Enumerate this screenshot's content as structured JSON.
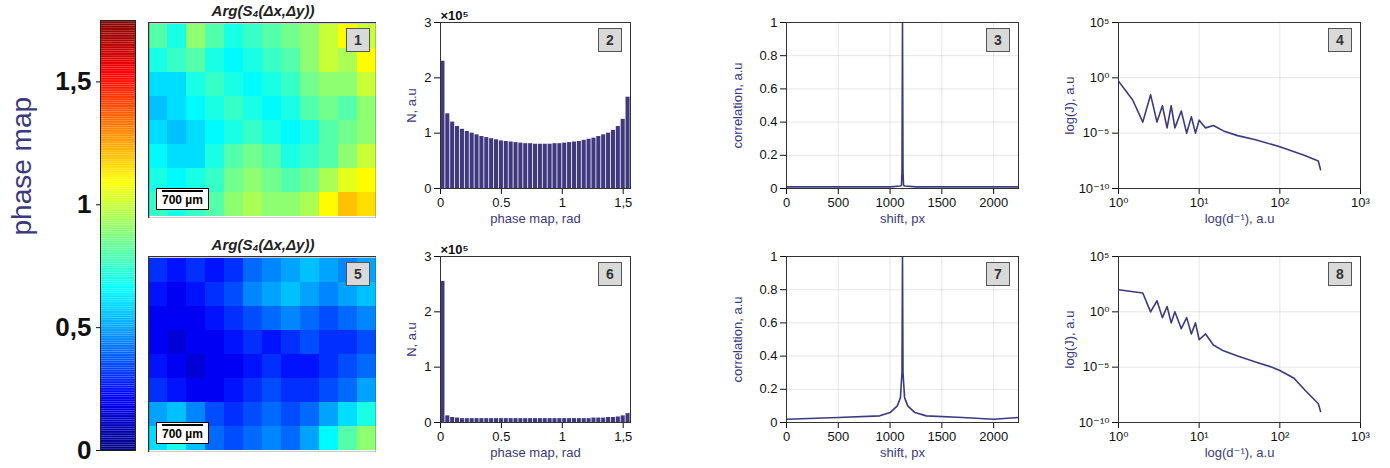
{
  "chart_data": [
    {
      "type": "colorbar",
      "label": "phase map",
      "color": "jet",
      "zlim": [
        0,
        1.75
      ],
      "zticks": [
        0,
        {
          "value": 0.5,
          "label": "0,5"
        },
        1,
        {
          "value": 1.5,
          "label": "1,5"
        }
      ]
    },
    {
      "type": "heatmap",
      "panel": "1",
      "title": "Arg(S₄(Δx,Δy))",
      "scale_bar": "700 µm",
      "color": "jet",
      "cells": [
        [
          0.8,
          0.7,
          0.9,
          0.8,
          0.7,
          0.75,
          0.8,
          0.85,
          0.9,
          1.0,
          1.1,
          1.0
        ],
        [
          0.7,
          0.75,
          0.8,
          0.7,
          0.65,
          0.7,
          0.75,
          0.8,
          0.9,
          1.0,
          0.95,
          1.1
        ],
        [
          0.6,
          0.6,
          0.7,
          0.75,
          0.7,
          0.65,
          0.7,
          0.75,
          0.85,
          0.9,
          0.9,
          1.0
        ],
        [
          0.55,
          0.6,
          0.65,
          0.7,
          0.75,
          0.7,
          0.65,
          0.7,
          0.8,
          0.85,
          0.8,
          0.9
        ],
        [
          0.6,
          0.55,
          0.6,
          0.65,
          0.7,
          0.75,
          0.7,
          0.65,
          0.7,
          0.8,
          0.85,
          0.9
        ],
        [
          0.65,
          0.6,
          0.6,
          0.7,
          0.8,
          0.85,
          0.8,
          0.7,
          0.75,
          0.8,
          0.9,
          1.0
        ],
        [
          0.7,
          0.65,
          0.7,
          0.75,
          0.85,
          0.9,
          0.85,
          0.8,
          0.85,
          0.95,
          1.05,
          1.1
        ],
        [
          0.75,
          0.7,
          0.75,
          0.8,
          0.9,
          0.95,
          0.9,
          0.9,
          0.95,
          1.1,
          1.2,
          1.15
        ]
      ]
    },
    {
      "type": "histogram",
      "panel": "2",
      "x_label": "phase map, rad",
      "y_label": "N, a.u",
      "y_axis_scale_label": "×10⁵",
      "color": "#40397f",
      "grid": false,
      "bins": [
        0,
        0.04,
        0.08,
        0.12,
        0.16,
        0.2,
        0.24,
        0.28,
        0.32,
        0.36,
        0.4,
        0.44,
        0.48,
        0.52,
        0.56,
        0.6,
        0.64,
        0.68,
        0.72,
        0.76,
        0.8,
        0.84,
        0.88,
        0.92,
        0.96,
        1,
        1.04,
        1.08,
        1.12,
        1.16,
        1.2,
        1.24,
        1.28,
        1.32,
        1.36,
        1.4,
        1.44,
        1.48,
        1.52,
        1.56
      ],
      "values": [
        2.3,
        1.35,
        1.2,
        1.12,
        1.07,
        1.03,
        1.0,
        0.97,
        0.94,
        0.92,
        0.9,
        0.88,
        0.86,
        0.85,
        0.84,
        0.83,
        0.82,
        0.81,
        0.81,
        0.8,
        0.8,
        0.8,
        0.8,
        0.81,
        0.81,
        0.82,
        0.83,
        0.84,
        0.85,
        0.87,
        0.89,
        0.91,
        0.94,
        0.97,
        1.0,
        1.05,
        1.12,
        1.25,
        1.65
      ],
      "xlim": [
        0,
        1.56
      ],
      "xticks": [
        0,
        0.5,
        1,
        {
          "value": 1.5,
          "label": "1,5"
        }
      ],
      "ylim": [
        0,
        3
      ],
      "yticks": [
        0,
        1,
        2,
        3
      ]
    },
    {
      "type": "line",
      "panel": "3",
      "x_label": "shift, px",
      "y_label": "correlation, a.u",
      "color": "#3c3a82",
      "grid": true,
      "x": [
        0,
        500,
        1000,
        1100,
        1110,
        1115,
        1120,
        1125,
        1130,
        1140,
        1250,
        1500,
        2000,
        2240
      ],
      "values": [
        0.01,
        0.01,
        0.01,
        0.015,
        0.02,
        0.1,
        1,
        0.1,
        0.02,
        0.015,
        0.01,
        0.01,
        0.01,
        0.01
      ],
      "xlim": [
        0,
        2240
      ],
      "xticks": [
        0,
        500,
        1000,
        1500,
        2000
      ],
      "ylim": [
        0,
        1
      ],
      "yticks": [
        0,
        0.2,
        0.4,
        0.6,
        0.8,
        1
      ]
    },
    {
      "type": "line",
      "panel": "4",
      "x_label": "log(d⁻¹), a.u",
      "y_label": "log(J), a.u",
      "color": "#3c3a82",
      "grid": true,
      "log": true,
      "x": [
        1,
        1.5,
        2,
        2.5,
        3,
        3.5,
        4,
        4.5,
        5,
        6,
        7,
        8,
        9,
        10,
        12,
        15,
        20,
        30,
        50,
        100,
        200,
        300,
        320
      ],
      "values": [
        0.5,
        0.01,
        0.0001,
        0.03,
        0.0001,
        0.003,
        3e-05,
        0.003,
        3e-05,
        0.001,
        1e-05,
        0.0003,
        1e-05,
        0.00015,
        3e-05,
        5e-05,
        1.6e-05,
        6e-06,
        2.5e-06,
        6e-07,
        1e-07,
        3e-08,
        5e-09
      ],
      "xlim": [
        1,
        1000
      ],
      "xticks": [
        {
          "value": 1,
          "label": "10⁰"
        },
        {
          "value": 10,
          "label": "10¹"
        },
        {
          "value": 100,
          "label": "10²"
        },
        {
          "value": 1000,
          "label": "10³"
        }
      ],
      "ylim": [
        1e-10,
        100000
      ],
      "yticks": [
        {
          "value": 1e-10,
          "label": "10⁻¹⁰"
        },
        {
          "value": 1e-05,
          "label": "10⁻⁵"
        },
        {
          "value": 1,
          "label": "10⁰"
        },
        {
          "value": 100000,
          "label": "10⁵"
        }
      ]
    },
    {
      "type": "heatmap",
      "panel": "5",
      "title": "Arg(S₄(Δx,Δy))",
      "scale_bar": "700 µm",
      "color": "jet",
      "cells": [
        [
          0.3,
          0.25,
          0.3,
          0.25,
          0.3,
          0.4,
          0.45,
          0.5,
          0.55,
          0.5,
          0.45,
          0.5
        ],
        [
          0.25,
          0.2,
          0.25,
          0.3,
          0.35,
          0.45,
          0.5,
          0.55,
          0.5,
          0.45,
          0.5,
          0.55
        ],
        [
          0.2,
          0.2,
          0.2,
          0.25,
          0.3,
          0.35,
          0.4,
          0.45,
          0.4,
          0.35,
          0.4,
          0.45
        ],
        [
          0.2,
          0.15,
          0.2,
          0.2,
          0.25,
          0.3,
          0.25,
          0.3,
          0.35,
          0.3,
          0.3,
          0.35
        ],
        [
          0.25,
          0.2,
          0.15,
          0.2,
          0.2,
          0.25,
          0.3,
          0.25,
          0.25,
          0.3,
          0.35,
          0.4
        ],
        [
          0.3,
          0.25,
          0.2,
          0.2,
          0.25,
          0.3,
          0.35,
          0.3,
          0.3,
          0.35,
          0.4,
          0.5
        ],
        [
          0.5,
          0.55,
          0.45,
          0.35,
          0.3,
          0.35,
          0.4,
          0.35,
          0.4,
          0.5,
          0.6,
          0.7
        ],
        [
          0.6,
          0.7,
          0.55,
          0.4,
          0.35,
          0.4,
          0.45,
          0.4,
          0.5,
          0.65,
          0.8,
          0.9
        ]
      ]
    },
    {
      "type": "histogram",
      "panel": "6",
      "x_label": "phase map, rad",
      "y_label": "N, a.u",
      "y_axis_scale_label": "×10⁵",
      "color": "#40397f",
      "grid": false,
      "bins": [
        0,
        0.04,
        0.08,
        0.12,
        0.16,
        0.2,
        0.24,
        0.28,
        0.32,
        0.36,
        0.4,
        0.44,
        0.48,
        0.52,
        0.56,
        0.6,
        0.64,
        0.68,
        0.72,
        0.76,
        0.8,
        0.84,
        0.88,
        0.92,
        0.96,
        1,
        1.04,
        1.08,
        1.12,
        1.16,
        1.2,
        1.24,
        1.28,
        1.32,
        1.36,
        1.4,
        1.44,
        1.48,
        1.52,
        1.56
      ],
      "values": [
        2.55,
        0.12,
        0.09,
        0.08,
        0.07,
        0.07,
        0.07,
        0.07,
        0.07,
        0.07,
        0.07,
        0.07,
        0.07,
        0.07,
        0.07,
        0.07,
        0.07,
        0.07,
        0.07,
        0.07,
        0.07,
        0.07,
        0.07,
        0.07,
        0.07,
        0.07,
        0.07,
        0.07,
        0.07,
        0.07,
        0.07,
        0.08,
        0.08,
        0.08,
        0.09,
        0.09,
        0.1,
        0.12,
        0.16
      ],
      "xlim": [
        0,
        1.56
      ],
      "xticks": [
        0,
        0.5,
        1,
        {
          "value": 1.5,
          "label": "1,5"
        }
      ],
      "ylim": [
        0,
        3
      ],
      "yticks": [
        0,
        1,
        2,
        3
      ]
    },
    {
      "type": "line",
      "panel": "7",
      "x_label": "shift, px",
      "y_label": "correlation, a.u",
      "color": "#3c3a82",
      "grid": true,
      "x": [
        0,
        500,
        900,
        1000,
        1070,
        1100,
        1115,
        1120,
        1125,
        1140,
        1170,
        1240,
        1350,
        1700,
        2000,
        2240
      ],
      "values": [
        0.02,
        0.03,
        0.04,
        0.06,
        0.1,
        0.15,
        0.3,
        1,
        0.3,
        0.15,
        0.1,
        0.06,
        0.04,
        0.03,
        0.02,
        0.03
      ],
      "xlim": [
        0,
        2240
      ],
      "xticks": [
        0,
        500,
        1000,
        1500,
        2000
      ],
      "ylim": [
        0,
        1
      ],
      "yticks": [
        0,
        0.2,
        0.4,
        0.6,
        0.8,
        1
      ]
    },
    {
      "type": "line",
      "panel": "8",
      "x_label": "log(d⁻¹), a.u",
      "y_label": "log(J), a.u",
      "color": "#3c3a82",
      "grid": true,
      "log": true,
      "x": [
        1,
        2,
        2.5,
        3,
        3.5,
        4,
        4.5,
        5,
        6,
        7,
        8,
        9,
        10,
        12,
        15,
        20,
        30,
        50,
        80,
        100,
        150,
        200,
        300,
        320
      ],
      "values": [
        100,
        50,
        1,
        10,
        0.3,
        3,
        0.1,
        1,
        0.03,
        0.3,
        0.01,
        0.1,
        0.003,
        0.01,
        0.001,
        0.0003,
        0.0001,
        3e-05,
        1e-05,
        5e-06,
        1e-06,
        1e-07,
        5e-09,
        1e-09
      ],
      "xlim": [
        1,
        1000
      ],
      "xticks": [
        {
          "value": 1,
          "label": "10⁰"
        },
        {
          "value": 10,
          "label": "10¹"
        },
        {
          "value": 100,
          "label": "10²"
        },
        {
          "value": 1000,
          "label": "10³"
        }
      ],
      "ylim": [
        1e-10,
        100000
      ],
      "yticks": [
        {
          "value": 1e-10,
          "label": "10⁻¹⁰"
        },
        {
          "value": 1e-05,
          "label": "10⁻⁵"
        },
        {
          "value": 1,
          "label": "10⁰"
        },
        {
          "value": 100000,
          "label": "10⁵"
        }
      ]
    }
  ]
}
